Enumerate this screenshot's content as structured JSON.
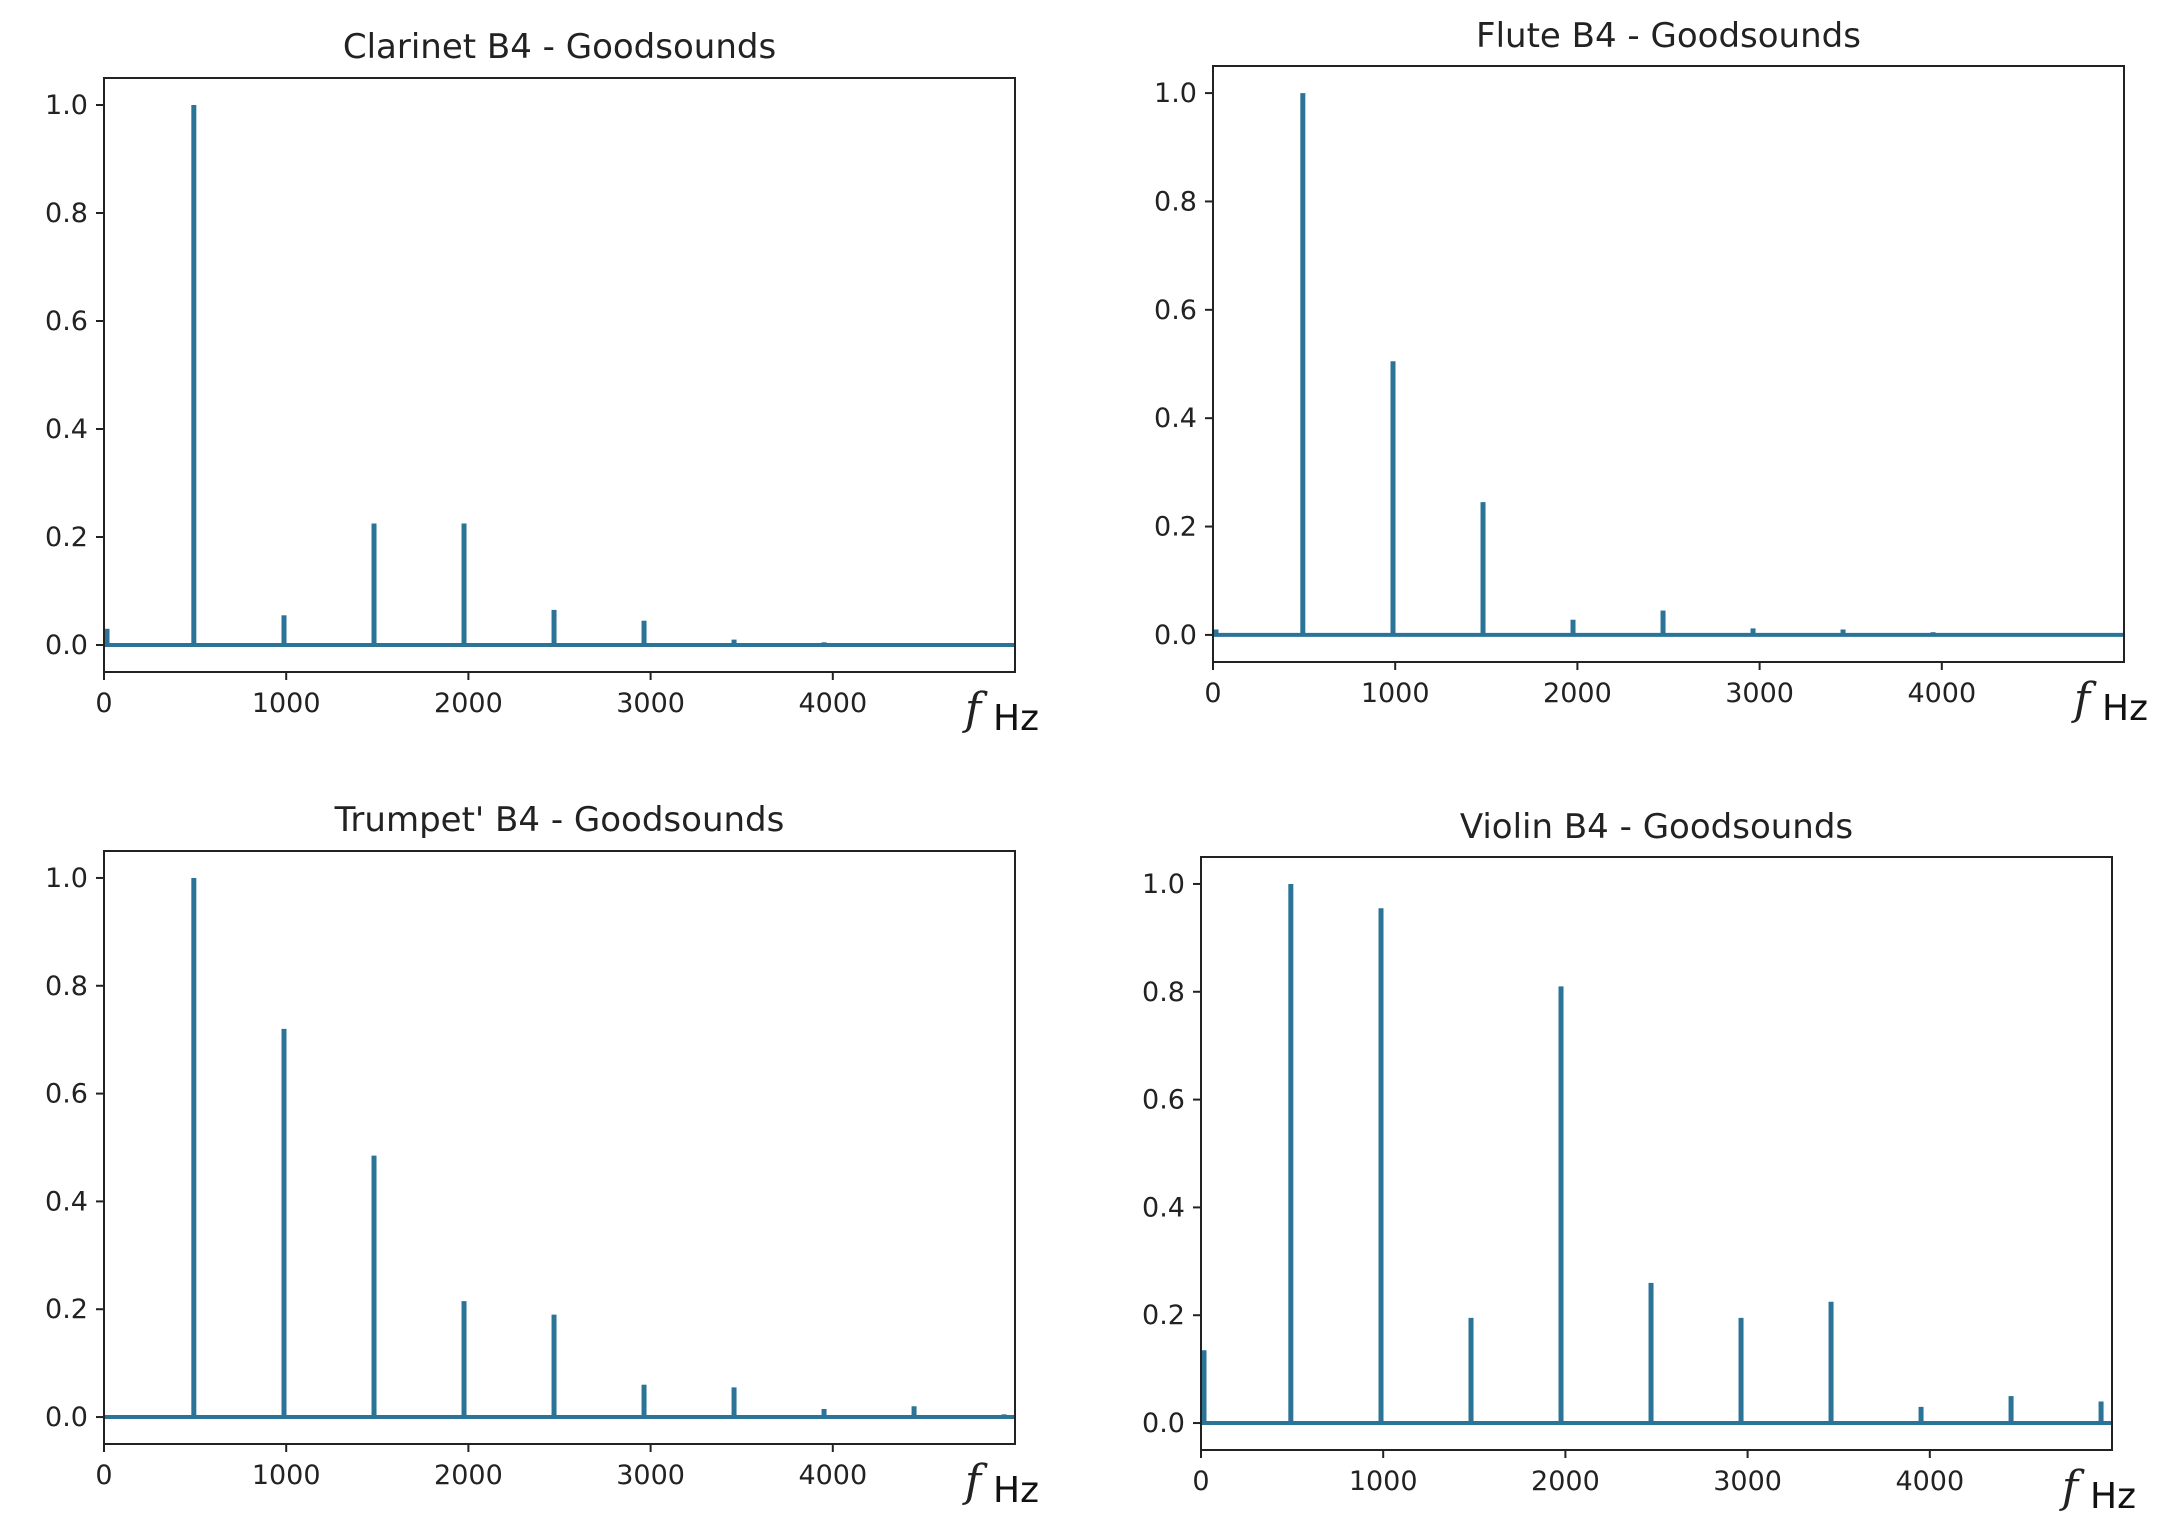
{
  "series_color": "#2b7397",
  "chart_data": [
    {
      "type": "line",
      "title": "Clarinet B4 - Goodsounds",
      "xlabel_symbol": "f",
      "xlabel_unit": "Hz",
      "xlim": [
        0,
        5000
      ],
      "ylim": [
        -0.05,
        1.05
      ],
      "xticks": [
        0,
        1000,
        2000,
        3000,
        4000
      ],
      "yticks": [
        0.0,
        0.2,
        0.4,
        0.6,
        0.8,
        1.0
      ],
      "x": [
        0,
        493,
        988,
        1482,
        1976,
        2470,
        2964,
        3458,
        3952
      ],
      "y": [
        0.03,
        1.0,
        0.055,
        0.225,
        0.225,
        0.065,
        0.045,
        0.01,
        0.005
      ]
    },
    {
      "type": "line",
      "title": "Flute B4 - Goodsounds",
      "xlabel_symbol": "f",
      "xlabel_unit": "Hz",
      "xlim": [
        0,
        5000
      ],
      "ylim": [
        -0.05,
        1.05
      ],
      "xticks": [
        0,
        1000,
        2000,
        3000,
        4000
      ],
      "yticks": [
        0.0,
        0.2,
        0.4,
        0.6,
        0.8,
        1.0
      ],
      "x": [
        0,
        493,
        988,
        1482,
        1976,
        2470,
        2964,
        3458,
        3952
      ],
      "y": [
        0.01,
        1.0,
        0.505,
        0.245,
        0.028,
        0.045,
        0.012,
        0.01,
        0.005
      ]
    },
    {
      "type": "line",
      "title": "Trumpet' B4 - Goodsounds",
      "xlabel_symbol": "f",
      "xlabel_unit": "Hz",
      "xlim": [
        0,
        5000
      ],
      "ylim": [
        -0.05,
        1.05
      ],
      "xticks": [
        0,
        1000,
        2000,
        3000,
        4000
      ],
      "yticks": [
        0.0,
        0.2,
        0.4,
        0.6,
        0.8,
        1.0
      ],
      "x": [
        493,
        988,
        1482,
        1976,
        2470,
        2964,
        3458,
        3952,
        4446,
        4940
      ],
      "y": [
        1.0,
        0.72,
        0.485,
        0.215,
        0.19,
        0.06,
        0.055,
        0.015,
        0.02,
        0.005
      ]
    },
    {
      "type": "line",
      "title": "Violin B4 - Goodsounds",
      "xlabel_symbol": "f",
      "xlabel_unit": "Hz",
      "xlim": [
        0,
        5000
      ],
      "ylim": [
        -0.05,
        1.05
      ],
      "xticks": [
        0,
        1000,
        2000,
        3000,
        4000
      ],
      "yticks": [
        0.0,
        0.2,
        0.4,
        0.6,
        0.8,
        1.0
      ],
      "x": [
        0,
        493,
        988,
        1482,
        1976,
        2470,
        2964,
        3458,
        3952,
        4446,
        4940
      ],
      "y": [
        0.135,
        1.0,
        0.955,
        0.195,
        0.81,
        0.26,
        0.195,
        0.225,
        0.03,
        0.05,
        0.04
      ]
    }
  ]
}
